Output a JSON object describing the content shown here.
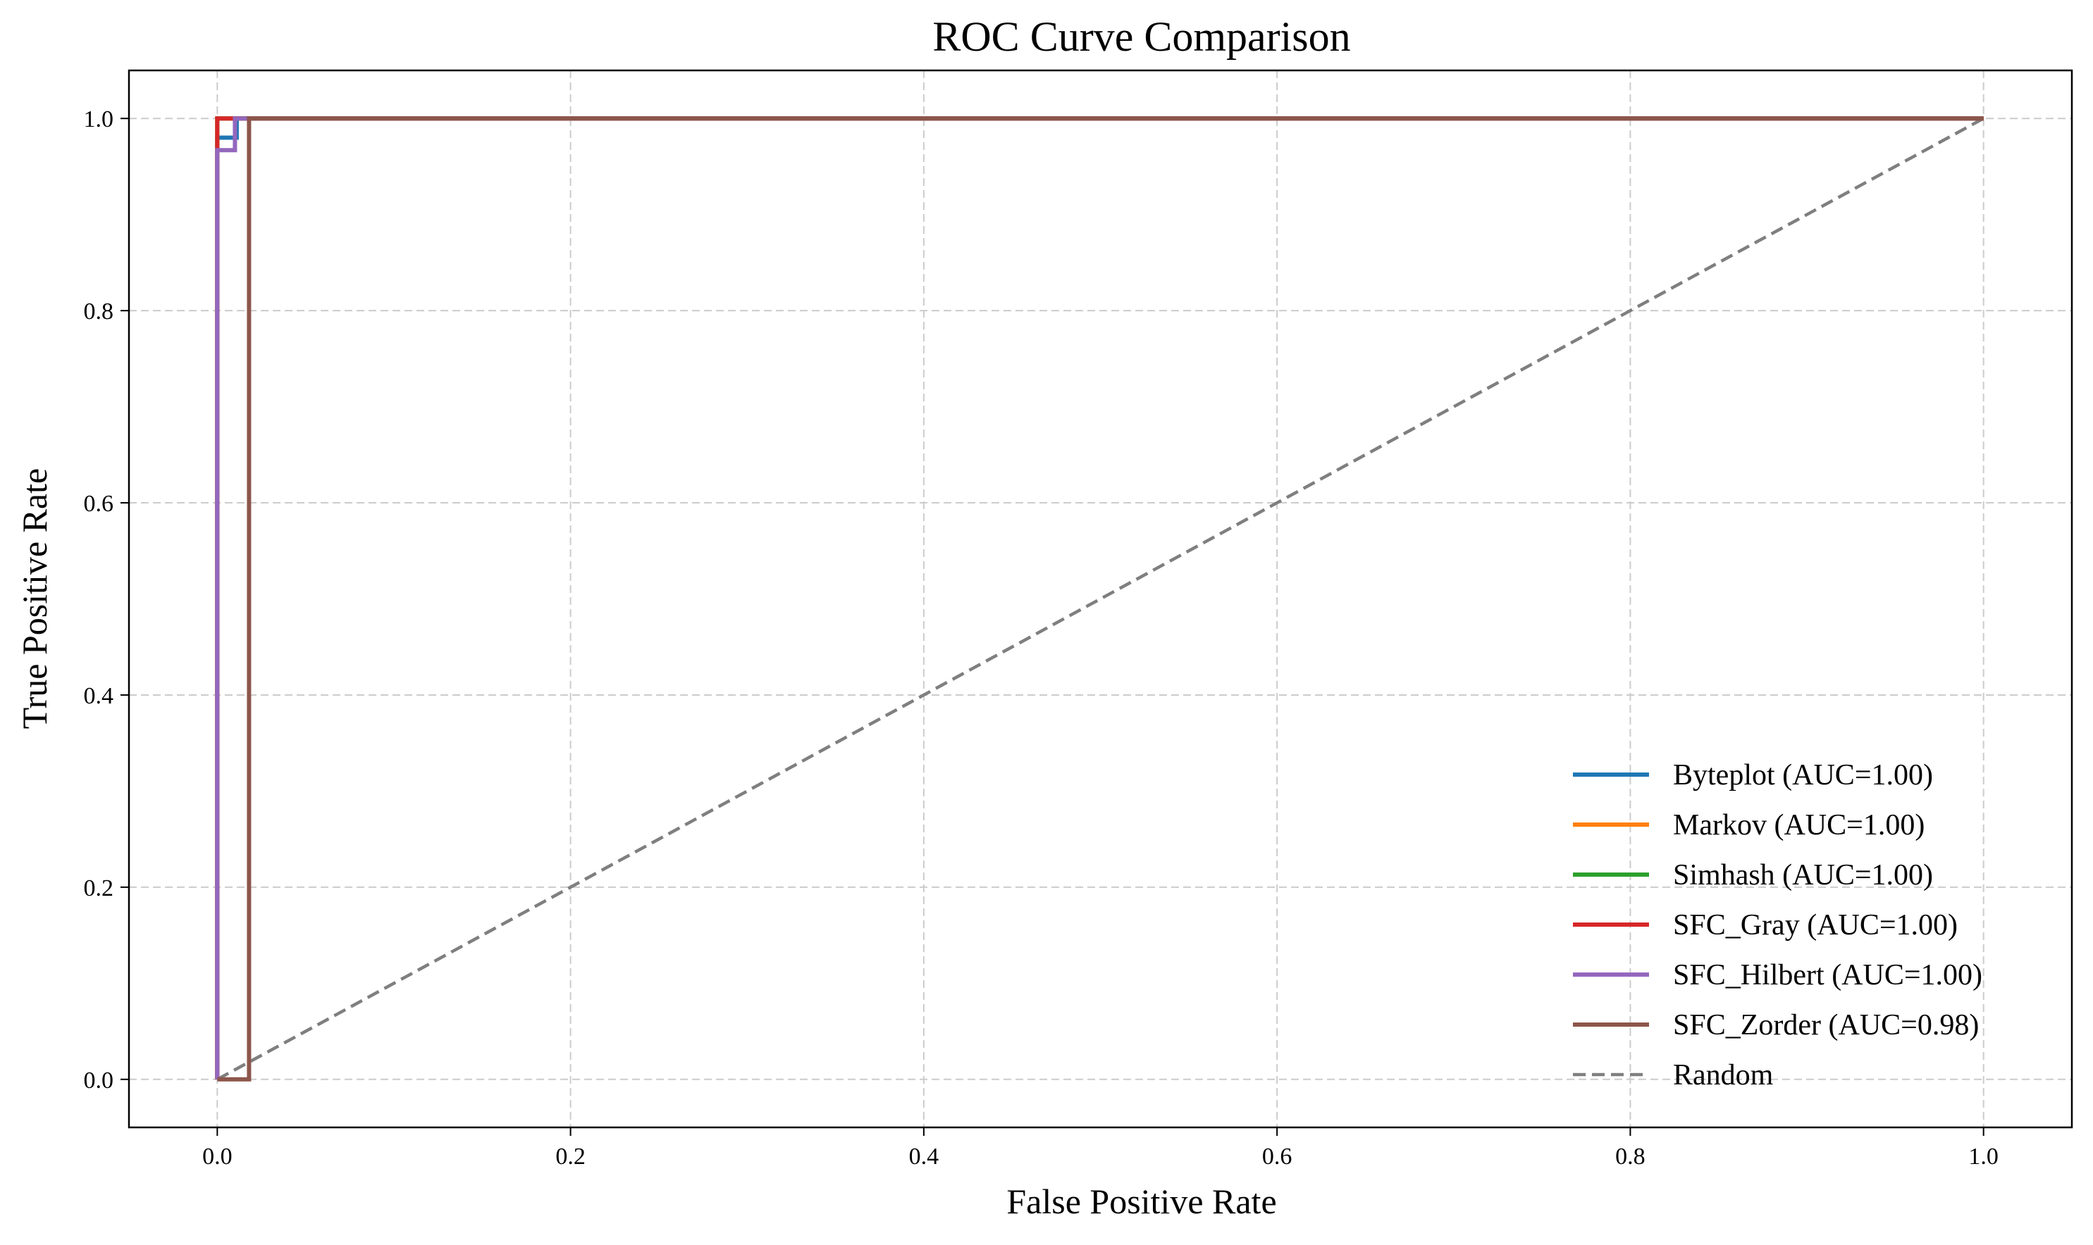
{
  "chart_data": {
    "type": "line",
    "title": "ROC Curve Comparison",
    "xlabel": "False Positive Rate",
    "ylabel": "True Positive Rate",
    "xlim": [
      -0.05,
      1.05
    ],
    "ylim": [
      -0.05,
      1.05
    ],
    "xticks": [
      0.0,
      0.2,
      0.4,
      0.6,
      0.8,
      1.0
    ],
    "yticks": [
      0.0,
      0.2,
      0.4,
      0.6,
      0.8,
      1.0
    ],
    "xtick_labels": [
      "0.0",
      "0.2",
      "0.4",
      "0.6",
      "0.8",
      "1.0"
    ],
    "ytick_labels": [
      "0.0",
      "0.2",
      "0.4",
      "0.6",
      "0.8",
      "1.0"
    ],
    "grid": true,
    "legend_position": "lower-right",
    "series": [
      {
        "name": "Byteplot (AUC=1.00)",
        "color": "#1f77b4",
        "style": "solid",
        "points": [
          [
            0.0,
            0.0
          ],
          [
            0.0,
            0.98
          ],
          [
            0.011,
            0.98
          ],
          [
            0.011,
            1.0
          ],
          [
            1.0,
            1.0
          ]
        ]
      },
      {
        "name": "Markov (AUC=1.00)",
        "color": "#ff7f0e",
        "style": "solid",
        "points": [
          [
            0.0,
            0.0
          ],
          [
            0.0,
            1.0
          ],
          [
            1.0,
            1.0
          ]
        ]
      },
      {
        "name": "Simhash (AUC=1.00)",
        "color": "#2ca02c",
        "style": "solid",
        "points": [
          [
            0.0,
            0.0
          ],
          [
            0.0,
            1.0
          ],
          [
            1.0,
            1.0
          ]
        ]
      },
      {
        "name": "SFC_Gray (AUC=1.00)",
        "color": "#d62728",
        "style": "solid",
        "points": [
          [
            0.0,
            0.0
          ],
          [
            0.0,
            1.0
          ],
          [
            1.0,
            1.0
          ]
        ]
      },
      {
        "name": "SFC_Hilbert (AUC=1.00)",
        "color": "#9467bd",
        "style": "solid",
        "points": [
          [
            0.0,
            0.0
          ],
          [
            0.0,
            0.967
          ],
          [
            0.01,
            0.967
          ],
          [
            0.01,
            1.0
          ],
          [
            1.0,
            1.0
          ]
        ]
      },
      {
        "name": "SFC_Zorder (AUC=0.98)",
        "color": "#8c564b",
        "style": "solid",
        "points": [
          [
            0.0,
            0.0
          ],
          [
            0.018,
            0.0
          ],
          [
            0.018,
            1.0
          ],
          [
            1.0,
            1.0
          ]
        ]
      },
      {
        "name": "Random",
        "color": "#7f7f7f",
        "style": "dashed",
        "points": [
          [
            0.0,
            0.0
          ],
          [
            1.0,
            1.0
          ]
        ]
      }
    ]
  }
}
